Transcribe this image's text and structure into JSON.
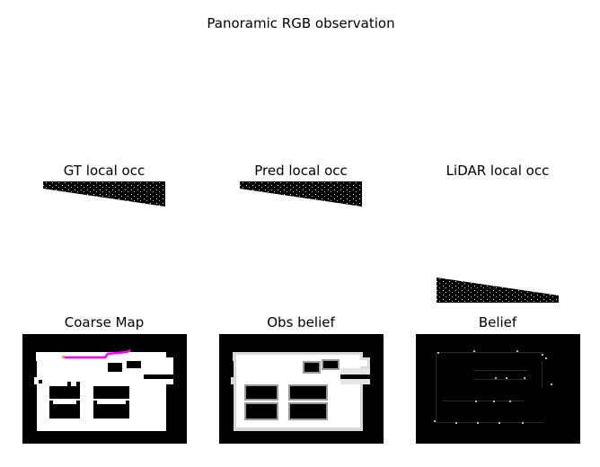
{
  "figure": {
    "suptitle": "Panoramic RGB observation",
    "panels": {
      "gt_local_occ": "GT local occ",
      "pred_local_occ": "Pred local occ",
      "lidar_local_occ": "LiDAR local occ",
      "coarse_map": "Coarse Map",
      "obs_belief": "Obs belief",
      "belief": "Belief"
    }
  },
  "colors": {
    "background": "#000000",
    "free_space": "#ffffff",
    "path": "#ff00ff",
    "path_marker": "#ffa500"
  }
}
